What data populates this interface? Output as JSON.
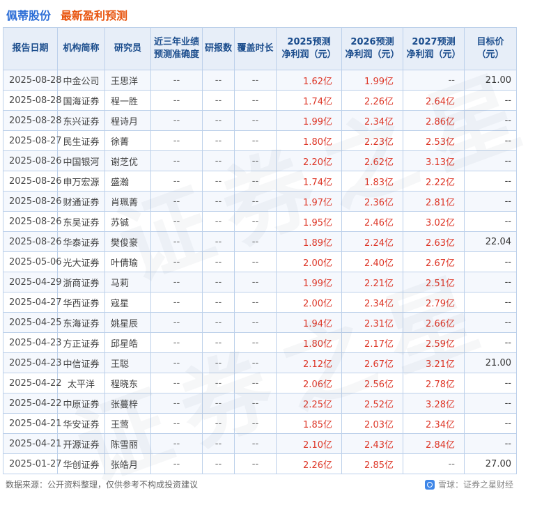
{
  "title": {
    "stock": "佩蒂股份",
    "subtitle": "最新盈利预测"
  },
  "colors": {
    "accent_blue": "#2b6dd6",
    "accent_orange": "#e8540e",
    "value_red": "#dd3526",
    "header_bg": "#e7eef8",
    "table_border": "#bcd0ea",
    "stripe_bg": "#f5f8fd"
  },
  "watermark": {
    "text": "证券之星"
  },
  "table": {
    "headers": [
      "报告日期",
      "机构简称",
      "研究员",
      "近三年业绩\n预测准确度",
      "研报数",
      "覆盖时长",
      "2025预测\n净利润（元）",
      "2026预测\n净利润（元）",
      "2027预测\n净利润（元）",
      "目标价\n（元）"
    ],
    "rows": [
      {
        "date": "2025-08-28",
        "org": "中金公司",
        "analyst": "王思洋",
        "accuracy": "--",
        "reports": "--",
        "coverage": "--",
        "y2025": "1.62亿",
        "y2026": "1.99亿",
        "y2027": "--",
        "target": "21.00"
      },
      {
        "date": "2025-08-28",
        "org": "国海证券",
        "analyst": "程一胜",
        "accuracy": "--",
        "reports": "--",
        "coverage": "--",
        "y2025": "1.74亿",
        "y2026": "2.26亿",
        "y2027": "2.64亿",
        "target": "--"
      },
      {
        "date": "2025-08-28",
        "org": "东兴证券",
        "analyst": "程诗月",
        "accuracy": "--",
        "reports": "--",
        "coverage": "--",
        "y2025": "1.99亿",
        "y2026": "2.34亿",
        "y2027": "2.86亿",
        "target": "--"
      },
      {
        "date": "2025-08-27",
        "org": "民生证券",
        "analyst": "徐菁",
        "accuracy": "--",
        "reports": "--",
        "coverage": "--",
        "y2025": "1.80亿",
        "y2026": "2.23亿",
        "y2027": "2.53亿",
        "target": "--"
      },
      {
        "date": "2025-08-26",
        "org": "中国银河",
        "analyst": "谢芝优",
        "accuracy": "--",
        "reports": "--",
        "coverage": "--",
        "y2025": "2.20亿",
        "y2026": "2.62亿",
        "y2027": "3.13亿",
        "target": "--"
      },
      {
        "date": "2025-08-26",
        "org": "申万宏源",
        "analyst": "盛瀚",
        "accuracy": "--",
        "reports": "--",
        "coverage": "--",
        "y2025": "1.74亿",
        "y2026": "1.83亿",
        "y2027": "2.22亿",
        "target": "--"
      },
      {
        "date": "2025-08-26",
        "org": "财通证券",
        "analyst": "肖珮菁",
        "accuracy": "--",
        "reports": "--",
        "coverage": "--",
        "y2025": "1.97亿",
        "y2026": "2.36亿",
        "y2027": "2.81亿",
        "target": "--"
      },
      {
        "date": "2025-08-26",
        "org": "东吴证券",
        "analyst": "苏铖",
        "accuracy": "--",
        "reports": "--",
        "coverage": "--",
        "y2025": "1.95亿",
        "y2026": "2.46亿",
        "y2027": "3.02亿",
        "target": "--"
      },
      {
        "date": "2025-08-26",
        "org": "华泰证券",
        "analyst": "樊俊豪",
        "accuracy": "--",
        "reports": "--",
        "coverage": "--",
        "y2025": "1.89亿",
        "y2026": "2.24亿",
        "y2027": "2.63亿",
        "target": "22.04"
      },
      {
        "date": "2025-05-06",
        "org": "光大证券",
        "analyst": "叶倩瑜",
        "accuracy": "--",
        "reports": "--",
        "coverage": "--",
        "y2025": "2.00亿",
        "y2026": "2.40亿",
        "y2027": "2.67亿",
        "target": "--"
      },
      {
        "date": "2025-04-29",
        "org": "浙商证券",
        "analyst": "马莉",
        "accuracy": "--",
        "reports": "--",
        "coverage": "--",
        "y2025": "1.99亿",
        "y2026": "2.21亿",
        "y2027": "2.51亿",
        "target": "--"
      },
      {
        "date": "2025-04-27",
        "org": "华西证券",
        "analyst": "寇星",
        "accuracy": "--",
        "reports": "--",
        "coverage": "--",
        "y2025": "2.00亿",
        "y2026": "2.34亿",
        "y2027": "2.79亿",
        "target": "--"
      },
      {
        "date": "2025-04-25",
        "org": "东海证券",
        "analyst": "姚星辰",
        "accuracy": "--",
        "reports": "--",
        "coverage": "--",
        "y2025": "1.94亿",
        "y2026": "2.31亿",
        "y2027": "2.66亿",
        "target": "--"
      },
      {
        "date": "2025-04-23",
        "org": "方正证券",
        "analyst": "邱星皓",
        "accuracy": "--",
        "reports": "--",
        "coverage": "--",
        "y2025": "1.80亿",
        "y2026": "2.17亿",
        "y2027": "2.59亿",
        "target": "--"
      },
      {
        "date": "2025-04-23",
        "org": "中信证券",
        "analyst": "王聪",
        "accuracy": "--",
        "reports": "--",
        "coverage": "--",
        "y2025": "2.12亿",
        "y2026": "2.67亿",
        "y2027": "3.21亿",
        "target": "21.00"
      },
      {
        "date": "2025-04-22",
        "org": "太平洋",
        "analyst": "程晓东",
        "accuracy": "--",
        "reports": "--",
        "coverage": "--",
        "y2025": "2.06亿",
        "y2026": "2.56亿",
        "y2027": "2.78亿",
        "target": "--"
      },
      {
        "date": "2025-04-22",
        "org": "中原证券",
        "analyst": "张蔓梓",
        "accuracy": "--",
        "reports": "--",
        "coverage": "--",
        "y2025": "2.25亿",
        "y2026": "2.52亿",
        "y2027": "3.28亿",
        "target": "--"
      },
      {
        "date": "2025-04-21",
        "org": "华安证券",
        "analyst": "王莺",
        "accuracy": "--",
        "reports": "--",
        "coverage": "--",
        "y2025": "1.85亿",
        "y2026": "2.03亿",
        "y2027": "2.34亿",
        "target": "--"
      },
      {
        "date": "2025-04-21",
        "org": "开源证券",
        "analyst": "陈雪丽",
        "accuracy": "--",
        "reports": "--",
        "coverage": "--",
        "y2025": "2.10亿",
        "y2026": "2.43亿",
        "y2027": "2.84亿",
        "target": "--"
      },
      {
        "date": "2025-01-27",
        "org": "华创证券",
        "analyst": "张皓月",
        "accuracy": "--",
        "reports": "--",
        "coverage": "--",
        "y2025": "2.26亿",
        "y2026": "2.85亿",
        "y2027": "--",
        "target": "27.00"
      }
    ]
  },
  "chart_data": {
    "type": "table",
    "title": "佩蒂股份 最新盈利预测",
    "columns": [
      "报告日期",
      "机构简称",
      "研究员",
      "近三年业绩预测准确度",
      "研报数",
      "覆盖时长",
      "2025预测净利润（元）",
      "2026预测净利润（元）",
      "2027预测净利润（元）",
      "目标价（元）"
    ],
    "unit": "亿",
    "series": [
      {
        "name": "2025预测净利润(亿)",
        "values": [
          1.62,
          1.74,
          1.99,
          1.8,
          2.2,
          1.74,
          1.97,
          1.95,
          1.89,
          2.0,
          1.99,
          2.0,
          1.94,
          1.8,
          2.12,
          2.06,
          2.25,
          1.85,
          2.1,
          2.26
        ]
      },
      {
        "name": "2026预测净利润(亿)",
        "values": [
          1.99,
          2.26,
          2.34,
          2.23,
          2.62,
          1.83,
          2.36,
          2.46,
          2.24,
          2.4,
          2.21,
          2.34,
          2.31,
          2.17,
          2.67,
          2.56,
          2.52,
          2.03,
          2.43,
          2.85
        ]
      },
      {
        "name": "2027预测净利润(亿)",
        "values": [
          null,
          2.64,
          2.86,
          2.53,
          3.13,
          2.22,
          2.81,
          3.02,
          2.63,
          2.67,
          2.51,
          2.79,
          2.66,
          2.59,
          3.21,
          2.78,
          3.28,
          2.34,
          2.84,
          null
        ]
      },
      {
        "name": "目标价(元)",
        "values": [
          21.0,
          null,
          null,
          null,
          null,
          null,
          null,
          null,
          22.04,
          null,
          null,
          null,
          null,
          null,
          21.0,
          null,
          null,
          null,
          null,
          27.0
        ]
      }
    ],
    "categories": [
      "中金公司 王思洋",
      "国海证券 程一胜",
      "东兴证券 程诗月",
      "民生证券 徐菁",
      "中国银河 谢芝优",
      "申万宏源 盛瀚",
      "财通证券 肖珮菁",
      "东吴证券 苏铖",
      "华泰证券 樊俊豪",
      "光大证券 叶倩瑜",
      "浙商证券 马莉",
      "华西证券 寇星",
      "东海证券 姚星辰",
      "方正证券 邱星皓",
      "中信证券 王聪",
      "太平洋 程晓东",
      "中原证券 张蔓梓",
      "华安证券 王莺",
      "开源证券 陈雪丽",
      "华创证券 张皓月"
    ]
  },
  "footer": {
    "source": "数据来源：公开资料整理，仅供参考不构成投资建议",
    "brand": "雪球：证券之星财经"
  }
}
